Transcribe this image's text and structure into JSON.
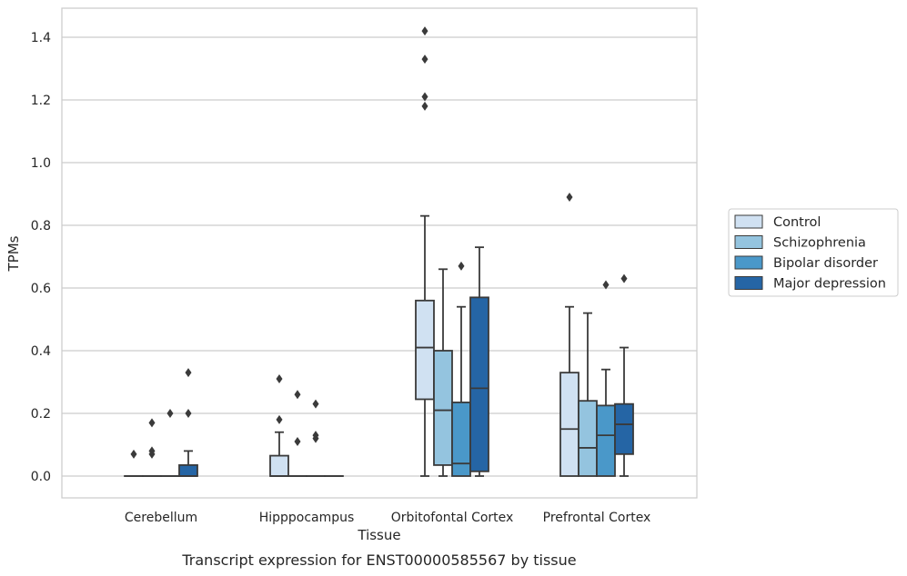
{
  "chart_data": {
    "type": "box",
    "title": "Transcript expression for ENST00000585567 by tissue",
    "xlabel": "Tissue",
    "ylabel": "TPMs",
    "ylim": [
      -0.07,
      1.49
    ],
    "yticks": [
      "0.0",
      "0.2",
      "0.4",
      "0.6",
      "0.8",
      "1.0",
      "1.2",
      "1.4"
    ],
    "grid": true,
    "legend_position": "right",
    "categories": [
      "Cerebellum",
      "Hipppocampus",
      "Orbitofontal Cortex",
      "Prefrontal Cortex"
    ],
    "series": [
      {
        "name": "Control",
        "color": "#d0e1f2",
        "boxes": [
          {
            "min": 0,
            "q1": 0,
            "median": 0,
            "q3": 0,
            "max": 0,
            "outliers": [
              0.07
            ]
          },
          {
            "min": 0,
            "q1": 0,
            "median": 0,
            "q3": 0.065,
            "max": 0.14,
            "outliers": [
              0.18,
              0.31
            ]
          },
          {
            "min": 0,
            "q1": 0.245,
            "median": 0.41,
            "q3": 0.56,
            "max": 0.83,
            "outliers": [
              1.18,
              1.21,
              1.33,
              1.42
            ]
          },
          {
            "min": 0,
            "q1": 0,
            "median": 0.15,
            "q3": 0.33,
            "max": 0.54,
            "outliers": [
              0.89
            ]
          }
        ]
      },
      {
        "name": "Schizophrenia",
        "color": "#94c4df",
        "boxes": [
          {
            "min": 0,
            "q1": 0,
            "median": 0,
            "q3": 0,
            "max": 0,
            "outliers": [
              0.07,
              0.08,
              0.17
            ]
          },
          {
            "min": 0,
            "q1": 0,
            "median": 0,
            "q3": 0,
            "max": 0,
            "outliers": [
              0.11,
              0.26
            ]
          },
          {
            "min": 0,
            "q1": 0.035,
            "median": 0.21,
            "q3": 0.4,
            "max": 0.66,
            "outliers": []
          },
          {
            "min": 0,
            "q1": 0,
            "median": 0.09,
            "q3": 0.24,
            "max": 0.52,
            "outliers": []
          }
        ]
      },
      {
        "name": "Bipolar disorder",
        "color": "#4a98c9",
        "boxes": [
          {
            "min": 0,
            "q1": 0,
            "median": 0,
            "q3": 0,
            "max": 0,
            "outliers": [
              0.2
            ]
          },
          {
            "min": 0,
            "q1": 0,
            "median": 0,
            "q3": 0,
            "max": 0,
            "outliers": [
              0.12,
              0.13,
              0.23
            ]
          },
          {
            "min": 0,
            "q1": 0,
            "median": 0.04,
            "q3": 0.235,
            "max": 0.54,
            "outliers": [
              0.67
            ]
          },
          {
            "min": 0,
            "q1": 0,
            "median": 0.13,
            "q3": 0.225,
            "max": 0.34,
            "outliers": [
              0.61
            ]
          }
        ]
      },
      {
        "name": "Major depression",
        "color": "#2565a5",
        "boxes": [
          {
            "min": 0,
            "q1": 0,
            "median": 0,
            "q3": 0.035,
            "max": 0.08,
            "outliers": [
              0.2,
              0.33
            ]
          },
          {
            "min": 0,
            "q1": 0,
            "median": 0,
            "q3": 0,
            "max": 0,
            "outliers": []
          },
          {
            "min": 0,
            "q1": 0.015,
            "median": 0.28,
            "q3": 0.57,
            "max": 0.73,
            "outliers": []
          },
          {
            "min": 0,
            "q1": 0.07,
            "median": 0.165,
            "q3": 0.23,
            "max": 0.41,
            "outliers": [
              0.63
            ]
          }
        ]
      }
    ]
  }
}
